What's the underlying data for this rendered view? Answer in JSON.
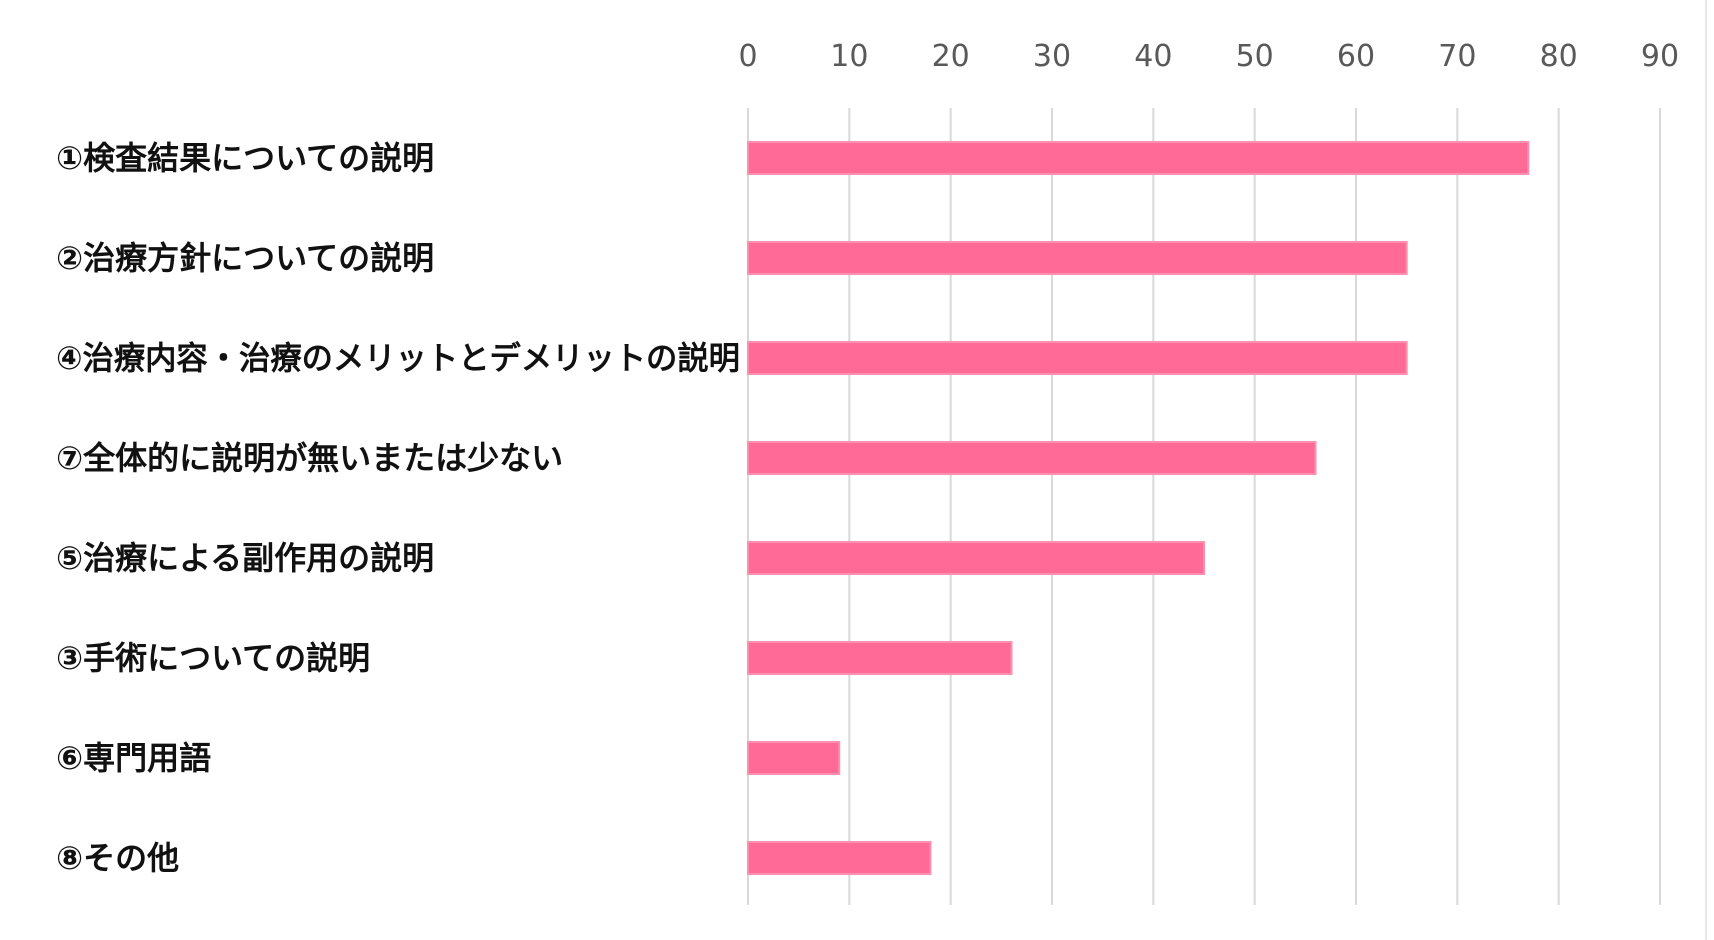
{
  "chart_data": {
    "type": "bar",
    "orientation": "horizontal",
    "categories": [
      "①検査結果についての説明",
      "②治療方針についての説明",
      "④治療内容・治療のメリットとデメリットの説明",
      "⑦全体的に説明が無いまたは少ない",
      "⑤治療による副作用の説明",
      "③手術についての説明",
      "⑥専門用語",
      "⑧その他"
    ],
    "values": [
      77,
      65,
      65,
      56,
      45,
      26,
      9,
      18
    ],
    "xlim": [
      0,
      90
    ],
    "xticks": [
      "0",
      "10",
      "20",
      "30",
      "40",
      "50",
      "60",
      "70",
      "80",
      "90"
    ],
    "axis_position": "top",
    "grid": true,
    "legend": "none",
    "bar_color": "#ff6b96",
    "title": "",
    "xlabel": "",
    "ylabel": ""
  }
}
